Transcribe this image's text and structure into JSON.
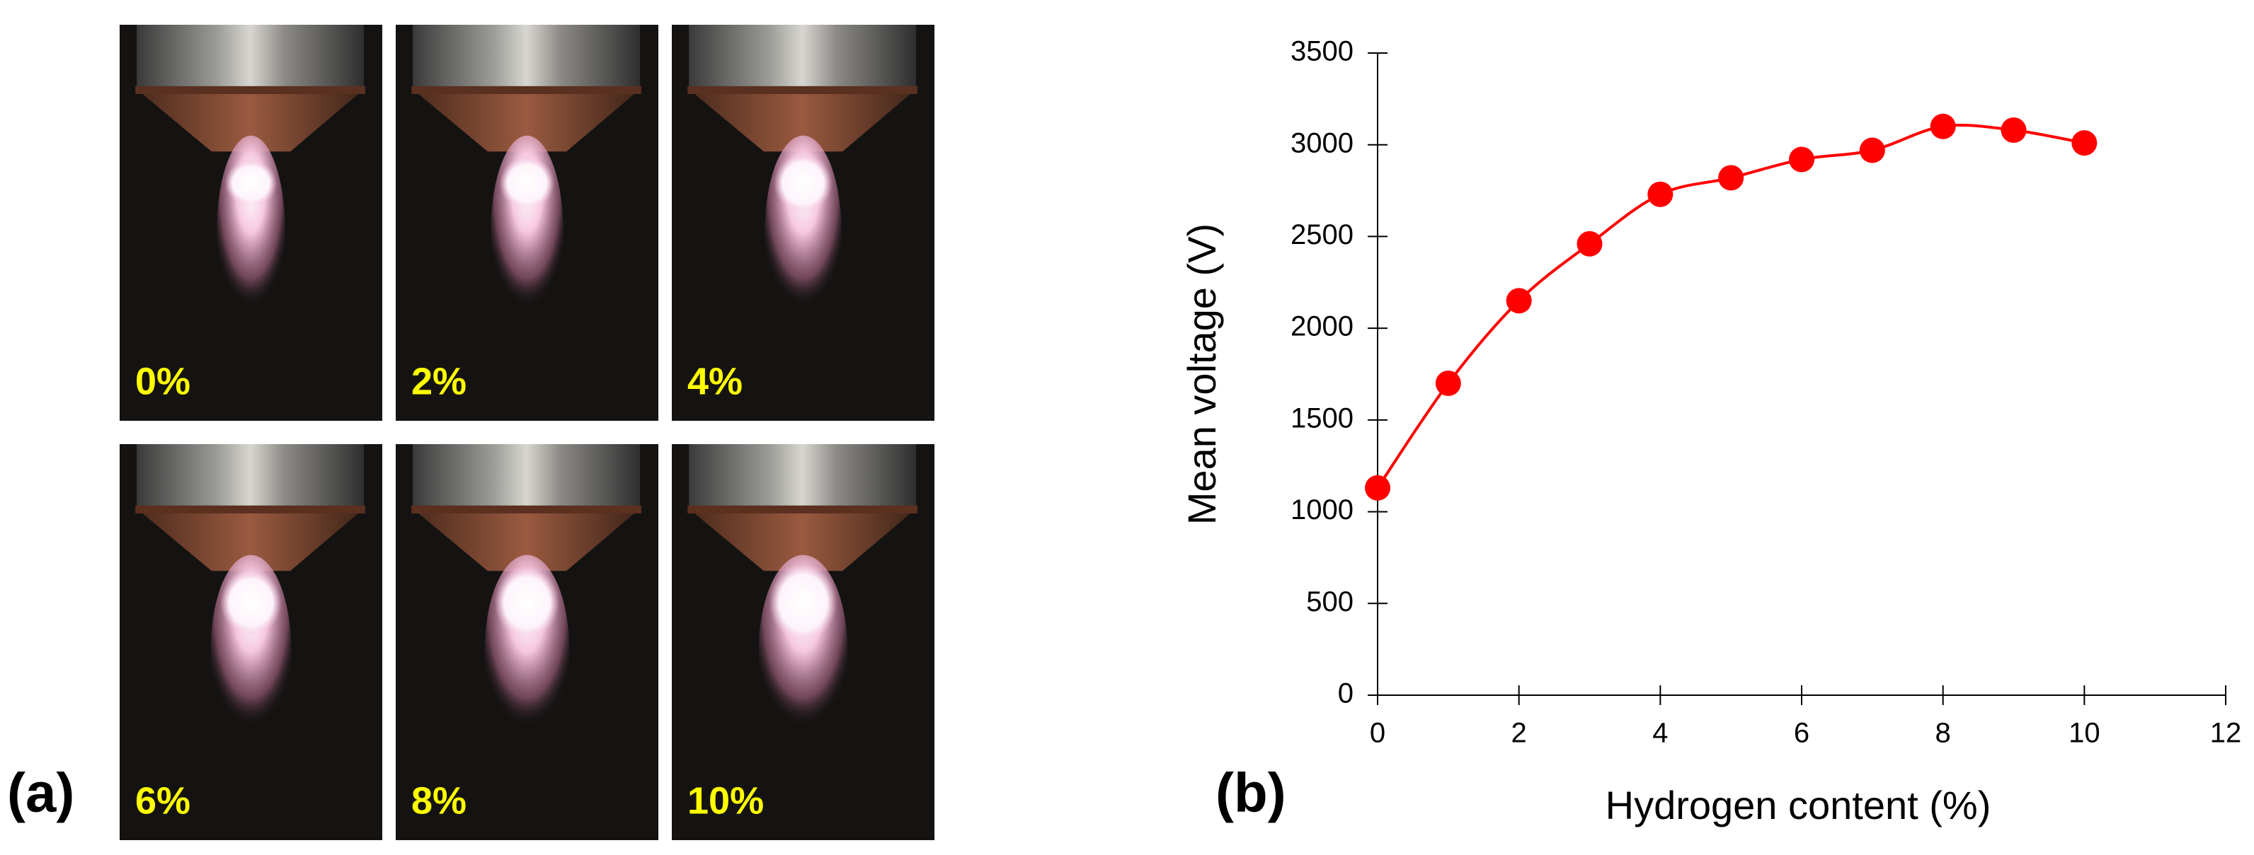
{
  "panel_a": {
    "label": "(a)",
    "images": [
      {
        "label": "0%"
      },
      {
        "label": "2%"
      },
      {
        "label": "4%"
      },
      {
        "label": "6%"
      },
      {
        "label": "8%"
      },
      {
        "label": "10%"
      }
    ]
  },
  "chart_data": {
    "type": "line",
    "panel_label": "(b)",
    "x_label": "Hydrogen content (%)",
    "y_label": "Mean voltage (V)",
    "x": [
      0,
      1,
      2,
      3,
      4,
      5,
      6,
      7,
      8,
      9,
      10
    ],
    "series": [
      {
        "name": "Mean voltage",
        "color": "#ff0000",
        "values": [
          1130,
          1700,
          2150,
          2460,
          2730,
          2820,
          2920,
          2970,
          3100,
          3080,
          3010
        ]
      }
    ],
    "xlim": [
      0,
      12
    ],
    "xticks": [
      0,
      2,
      4,
      6,
      8,
      10,
      12
    ],
    "ylim": [
      0,
      3500
    ],
    "yticks": [
      0,
      500,
      1000,
      1500,
      2000,
      2500,
      3000,
      3500
    ],
    "legend": false,
    "grid": false
  }
}
